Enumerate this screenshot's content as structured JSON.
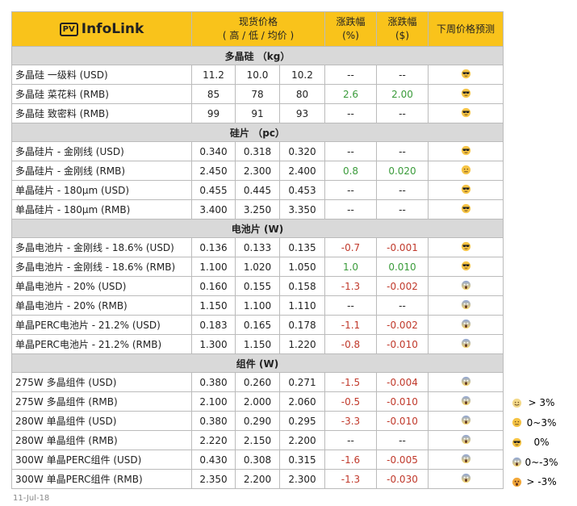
{
  "header": {
    "logo_mark": "PV",
    "logo": "InfoLink",
    "price": "现货价格",
    "price_sub": "( 高 / 低 / 均价 )",
    "change_pct": "涨跌幅",
    "change_pct_unit": "(%)",
    "change_usd": "涨跌幅",
    "change_usd_unit": "($)",
    "forecast": "下周价格预测"
  },
  "sections": [
    {
      "title": "多晶硅 （kg）",
      "rows": [
        [
          "多晶硅 一级料 (USD)",
          "11.2",
          "10.0",
          "10.2",
          "--",
          "--"
        ],
        [
          "多晶硅 菜花料 (RMB)",
          "85",
          "78",
          "80",
          "2.6",
          "2.00"
        ],
        [
          "多晶硅 致密料 (RMB)",
          "99",
          "91",
          "93",
          "--",
          "--"
        ]
      ]
    },
    {
      "title": "硅片 （pc）",
      "rows": [
        [
          "多晶硅片 - 金刚线 (USD)",
          "0.340",
          "0.318",
          "0.320",
          "--",
          "--"
        ],
        [
          "多晶硅片 - 金刚线 (RMB)",
          "2.450",
          "2.300",
          "2.400",
          "0.8",
          "0.020"
        ],
        [
          "单晶硅片 - 180μm (USD)",
          "0.455",
          "0.445",
          "0.453",
          "--",
          "--"
        ],
        [
          "单晶硅片 - 180μm (RMB)",
          "3.400",
          "3.250",
          "3.350",
          "--",
          "--"
        ]
      ]
    },
    {
      "title": "电池片 (W)",
      "rows": [
        [
          "多晶电池片 - 金刚线 - 18.6% (USD)",
          "0.136",
          "0.133",
          "0.135",
          "-0.7",
          "-0.001"
        ],
        [
          "多晶电池片 - 金刚线 - 18.6% (RMB)",
          "1.100",
          "1.020",
          "1.050",
          "1.0",
          "0.010"
        ],
        [
          "单晶电池片 - 20% (USD)",
          "0.160",
          "0.155",
          "0.158",
          "-1.3",
          "-0.002"
        ],
        [
          "单晶电池片 - 20% (RMB)",
          "1.150",
          "1.100",
          "1.110",
          "--",
          "--"
        ],
        [
          "单晶PERC电池片 - 21.2% (USD)",
          "0.183",
          "0.165",
          "0.178",
          "-1.1",
          "-0.002"
        ],
        [
          "单晶PERC电池片 - 21.2% (RMB)",
          "1.300",
          "1.150",
          "1.220",
          "-0.8",
          "-0.010"
        ]
      ]
    },
    {
      "title": "组件 (W)",
      "rows": [
        [
          "275W 多晶组件 (USD)",
          "0.380",
          "0.260",
          "0.271",
          "-1.5",
          "-0.004"
        ],
        [
          "275W 多晶组件 (RMB)",
          "2.100",
          "2.000",
          "2.060",
          "-0.5",
          "-0.010"
        ],
        [
          "280W 单晶组件 (USD)",
          "0.380",
          "0.290",
          "0.295",
          "-3.3",
          "-0.010"
        ],
        [
          "280W 单晶组件 (RMB)",
          "2.220",
          "2.150",
          "2.200",
          "--",
          "--"
        ],
        [
          "300W 单晶PERC组件 (USD)",
          "0.430",
          "0.308",
          "0.315",
          "-1.6",
          "-0.005"
        ],
        [
          "300W 单晶PERC组件 (RMB)",
          "2.350",
          "2.200",
          "2.300",
          "-1.3",
          "-0.030"
        ]
      ]
    }
  ],
  "legend": [
    "> 3%",
    "0~3%",
    "0%",
    "0~-3%",
    "> -3%"
  ],
  "date": "11-Jul-18"
}
